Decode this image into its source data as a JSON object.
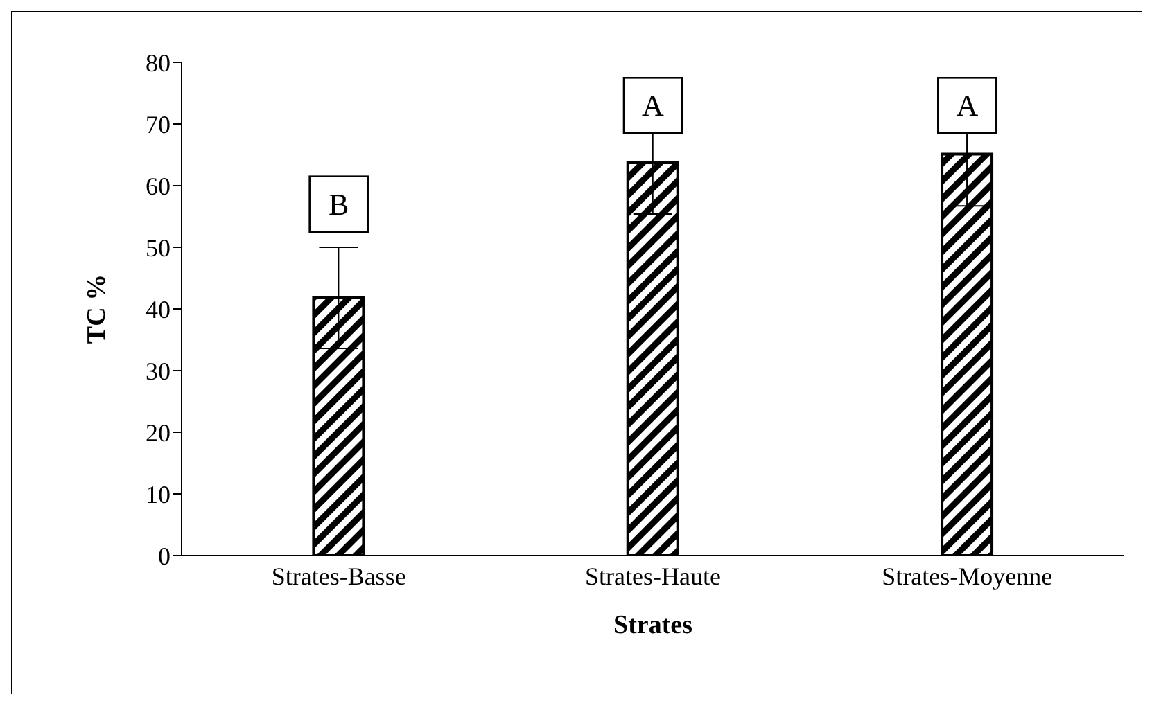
{
  "chart_data": {
    "type": "bar",
    "xlabel": "Strates",
    "ylabel": "TC %",
    "categories": [
      "Strates-Basse",
      "Strates-Haute",
      "Strates-Moyenne"
    ],
    "values": [
      41.8,
      63.7,
      65.1
    ],
    "errors": [
      8.2,
      8.3,
      8.4
    ],
    "color": "#000000",
    "ylim": [
      0,
      80
    ],
    "yticks": [
      0,
      10,
      20,
      30,
      40,
      50,
      60,
      70,
      80
    ],
    "grid": false,
    "legend": false,
    "annotations": [
      {
        "text": "B",
        "x": "Strates-Basse",
        "y": 57
      },
      {
        "text": "A",
        "x": "Strates-Haute",
        "y": 73
      },
      {
        "text": "A",
        "x": "Strates-Moyenne",
        "y": 73
      }
    ]
  }
}
